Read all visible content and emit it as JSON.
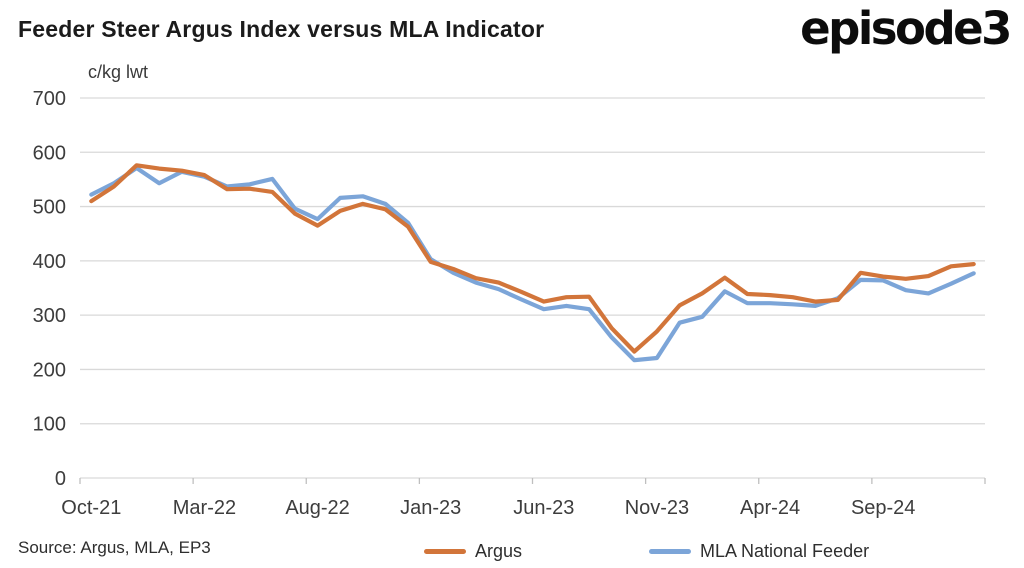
{
  "header": {
    "title": "Feeder Steer Argus Index versus MLA Indicator",
    "logo": "episode3"
  },
  "footer": {
    "source": "Source: Argus, MLA, EP3"
  },
  "legend": [
    {
      "label": "Argus",
      "color": "#D2753A"
    },
    {
      "label": "MLA National Feeder",
      "color": "#7CA5D8"
    }
  ],
  "chart_data": {
    "type": "line",
    "title": "Feeder Steer Argus Index versus MLA Indicator",
    "unit_label": "c/kg lwt",
    "xlabel": "",
    "ylabel": "c/kg lwt",
    "ylim": [
      0,
      700
    ],
    "y_ticks": [
      0,
      100,
      200,
      300,
      400,
      500,
      600,
      700
    ],
    "grid": "horizontal",
    "legend_position": "bottom",
    "x_tick_labels": [
      "Oct-21",
      "Mar-22",
      "Aug-22",
      "Jan-23",
      "Jun-23",
      "Nov-23",
      "Apr-24",
      "Sep-24"
    ],
    "x_tick_every": 5,
    "x": [
      "Oct-21",
      "Nov-21",
      "Dec-21",
      "Jan-22",
      "Feb-22",
      "Mar-22",
      "Apr-22",
      "May-22",
      "Jun-22",
      "Jul-22",
      "Aug-22",
      "Sep-22",
      "Oct-22",
      "Nov-22",
      "Dec-22",
      "Jan-23",
      "Feb-23",
      "Mar-23",
      "Apr-23",
      "May-23",
      "Jun-23",
      "Jul-23",
      "Aug-23",
      "Sep-23",
      "Oct-23",
      "Nov-23",
      "Dec-23",
      "Jan-24",
      "Feb-24",
      "Mar-24",
      "Apr-24",
      "May-24",
      "Jun-24",
      "Jul-24",
      "Aug-24",
      "Sep-24",
      "Oct-24",
      "Nov-24",
      "Dec-24",
      "Jan-25"
    ],
    "series": [
      {
        "name": "Argus",
        "color": "#D2753A",
        "values": [
          510,
          537,
          576,
          570,
          566,
          558,
          532,
          533,
          527,
          487,
          465,
          492,
          505,
          495,
          463,
          398,
          385,
          368,
          360,
          343,
          325,
          333,
          334,
          276,
          233,
          270,
          318,
          340,
          369,
          339,
          337,
          333,
          325,
          328,
          378,
          371,
          367,
          372,
          390,
          394
        ]
      },
      {
        "name": "MLA National Feeder",
        "color": "#7CA5D8",
        "values": [
          522,
          543,
          571,
          543,
          564,
          555,
          537,
          541,
          551,
          496,
          477,
          516,
          519,
          505,
          470,
          403,
          378,
          360,
          348,
          329,
          311,
          317,
          311,
          259,
          217,
          221,
          286,
          297,
          344,
          322,
          322,
          320,
          317,
          331,
          365,
          364,
          346,
          340,
          358,
          377
        ]
      }
    ],
    "axis_colors": {
      "grid": "#d9d9d9",
      "tick": "#bfbfbf",
      "label": "#3d3d3d"
    }
  }
}
